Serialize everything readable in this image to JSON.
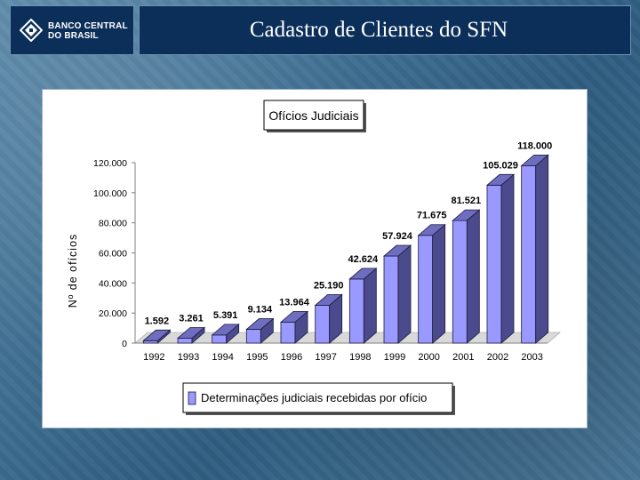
{
  "brand": {
    "line1": "BANCO CENTRAL",
    "line2": "DO BRASIL",
    "logo_icon": "banco-central-symbol"
  },
  "slide_title": "Cadastro de Clientes do SFN",
  "chart_data": {
    "type": "bar",
    "title": "Ofícios Judiciais",
    "ylabel": "Nº de ofícios",
    "xlabel": "",
    "categories": [
      "1992",
      "1993",
      "1994",
      "1995",
      "1996",
      "1997",
      "1998",
      "1999",
      "2000",
      "2001",
      "2002",
      "2003"
    ],
    "values": [
      1592,
      3261,
      5391,
      9134,
      13964,
      25190,
      42624,
      57924,
      71675,
      81521,
      105029,
      118000
    ],
    "value_labels": [
      "1.592",
      "3.261",
      "5.391",
      "9.134",
      "13.964",
      "25.190",
      "42.624",
      "57.924",
      "71.675",
      "81.521",
      "105.029",
      "118.000"
    ],
    "y_ticks": [
      0,
      20000,
      40000,
      60000,
      80000,
      100000,
      120000
    ],
    "y_tick_labels": [
      "0",
      "20.000",
      "40.000",
      "60.000",
      "80.000",
      "100.000",
      "120.000"
    ],
    "ylim": [
      0,
      120000
    ],
    "legend": "Determinações judiciais recebidas por ofício",
    "legend_position": "bottom",
    "bar_color": "#9999ff",
    "bar_side_color": "#4b4a8c",
    "bar_top_color": "#6e6dc0"
  }
}
